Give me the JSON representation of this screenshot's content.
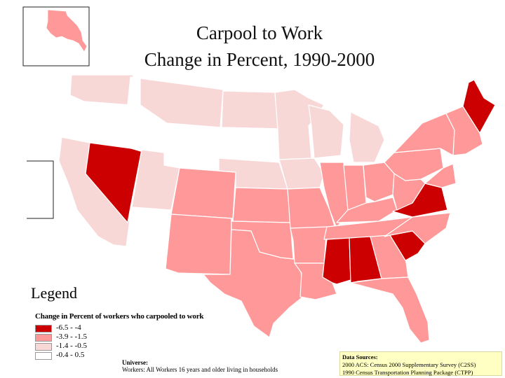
{
  "map": {
    "title_line1": "Carpool to Work",
    "title_line2": "Change in Percent, 1990-2000",
    "legend_heading": "Legend",
    "legend_title": "Change in Percent of workers who carpooled to work",
    "legend_items": [
      {
        "range": "-6.5 - -4",
        "color": "#cc0000"
      },
      {
        "range": "-3.9 - -1.5",
        "color": "#ff9999"
      },
      {
        "range": "-1.4 - -0.5",
        "color": "#f8d7d7"
      },
      {
        "range": "-0.4 - 0.5",
        "color": "#ffffff"
      }
    ],
    "universe_label": "Universe:",
    "universe_text": "Workers: All Workers 16 years and older living in households",
    "sources_label": "Data Sources:",
    "sources_lines": [
      "2000 ACS: Census 2000 Supplementary Survey (C2SS)",
      "1990 Census Transportation Planning Package (CTPP)"
    ],
    "state_classes": {
      "WA": 2,
      "OR": 3,
      "CA": 2,
      "NV": 0,
      "ID": 3,
      "MT": 2,
      "WY": 3,
      "UT": 2,
      "AZ": 3,
      "CO": 1,
      "NM": 1,
      "ND": 2,
      "SD": 3,
      "NE": 2,
      "KS": 1,
      "OK": 1,
      "TX": 1,
      "MN": 2,
      "IA": 2,
      "MO": 1,
      "AR": 1,
      "LA": 1,
      "WI": 2,
      "MI": 2,
      "IL": 1,
      "IN": 1,
      "OH": 1,
      "KY": 1,
      "TN": 1,
      "MS": 0,
      "AL": 0,
      "GA": 1,
      "FL": 1,
      "SC": 0,
      "NC": 1,
      "VA": 0,
      "WV": 1,
      "PA": 1,
      "NY": 1,
      "ME": 0,
      "NE_STATES": 1,
      "AK": 1
    }
  }
}
